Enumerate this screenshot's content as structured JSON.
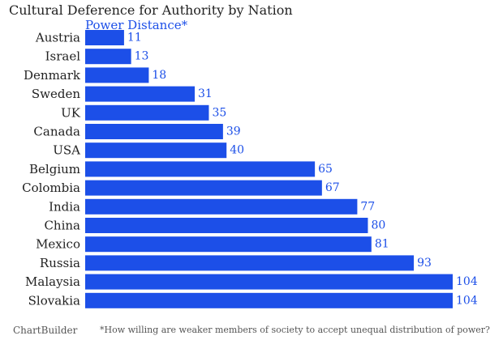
{
  "chart_data": {
    "type": "bar",
    "orientation": "horizontal",
    "title": "Cultural Deference for Authority by Nation",
    "subtitle": "Power Distance*",
    "categories": [
      "Austria",
      "Israel",
      "Denmark",
      "Sweden",
      "UK",
      "Canada",
      "USA",
      "Belgium",
      "Colombia",
      "India",
      "China",
      "Mexico",
      "Russia",
      "Malaysia",
      "Slovakia"
    ],
    "values": [
      11,
      13,
      18,
      31,
      35,
      39,
      40,
      65,
      67,
      77,
      80,
      81,
      93,
      104,
      104
    ],
    "xlim": [
      0,
      104
    ],
    "grid": false,
    "legend": "none"
  },
  "colors": {
    "bar": "#1c4fe8",
    "label": "#1c4fe8",
    "category": "#222222"
  },
  "footer": {
    "source": "ChartBuilder",
    "footnote": "*How willing are weaker members of society to accept unequal distribution of power?"
  }
}
